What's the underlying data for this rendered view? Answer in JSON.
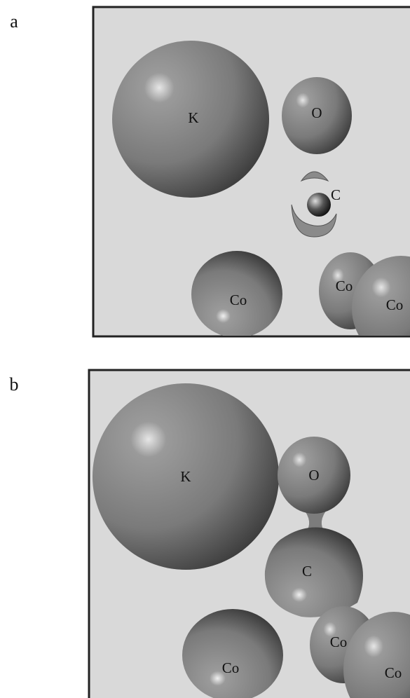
{
  "panels": [
    {
      "label": "a",
      "atoms": [
        "K",
        "O",
        "C",
        "Co",
        "Co",
        "Co"
      ]
    },
    {
      "label": "b",
      "atoms": [
        "K",
        "O",
        "C",
        "Co",
        "Co",
        "Co"
      ]
    }
  ]
}
